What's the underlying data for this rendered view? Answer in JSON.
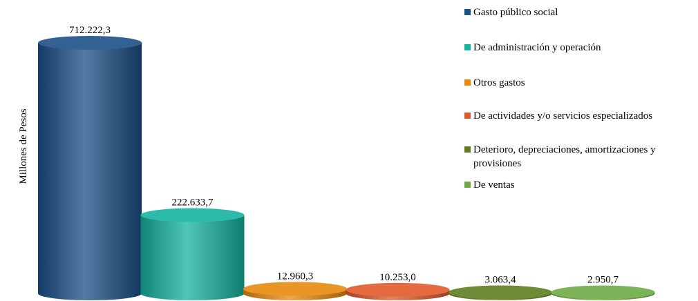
{
  "chart_data": {
    "type": "bar3d",
    "y_label": "Millones  de Pesos",
    "categories": [
      "Gasto público social",
      "De administración y operación",
      "Otros gastos",
      "De actividades y/o servicios especializados",
      "Deterioro, depreciaciones, amortizaciones y provisiones",
      "De ventas"
    ],
    "values": [
      712222.3,
      222633.7,
      12960.3,
      10253.0,
      3063.4,
      2950.7
    ],
    "value_labels": [
      "712.222,3",
      "222.633,7",
      "12.960,3",
      "10.253,0",
      "3.063,4",
      "2.950,7"
    ],
    "colors": [
      "#1b4f86",
      "#15b3a0",
      "#e88a0e",
      "#e2592a",
      "#5f7d1e",
      "#6eab45"
    ],
    "legend": "right"
  }
}
